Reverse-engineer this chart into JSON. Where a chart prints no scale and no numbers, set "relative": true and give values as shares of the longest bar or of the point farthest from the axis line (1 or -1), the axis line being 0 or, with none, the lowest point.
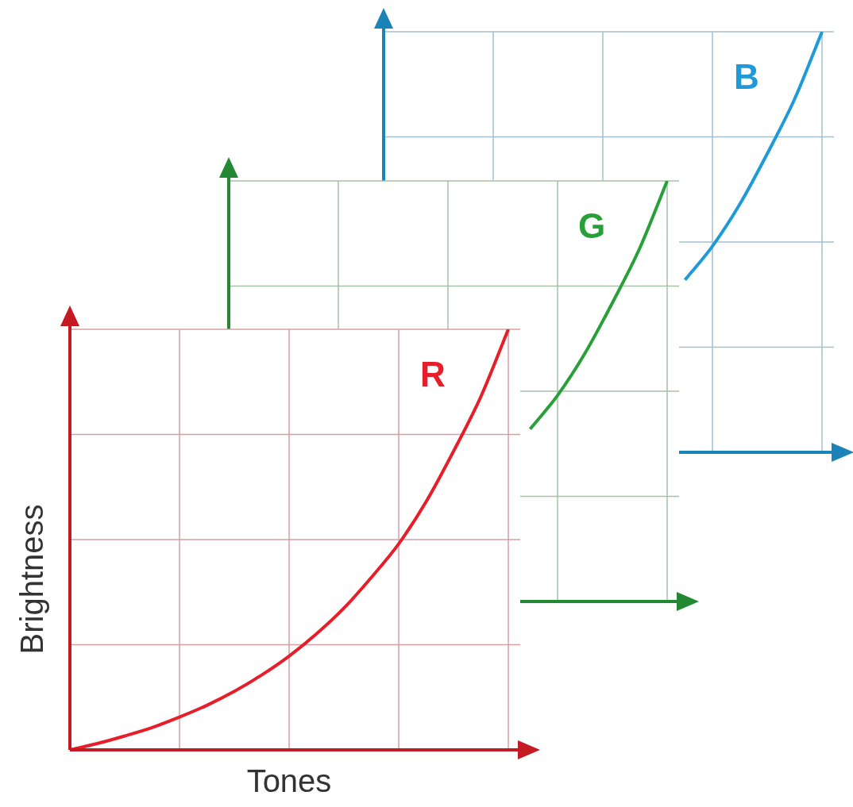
{
  "chart_data": [
    {
      "type": "line",
      "relative": true,
      "grid": true,
      "marker": "none",
      "categories": [
        null,
        null,
        null,
        null,
        null,
        null,
        null,
        null,
        null,
        null,
        null,
        null,
        null,
        null,
        null,
        null,
        null
      ],
      "series": [
        {
          "name": "B",
          "color": "#1f9ad8",
          "values": [
            null,
            null,
            null,
            null,
            null,
            null,
            null,
            null,
            null,
            null,
            null,
            0.41,
            0.49,
            0.59,
            0.71,
            0.84,
            1
          ]
        }
      ]
    },
    {
      "type": "line",
      "relative": true,
      "grid": true,
      "marker": "none",
      "categories": [
        null,
        null,
        null,
        null,
        null,
        null,
        null,
        null,
        null,
        null,
        null,
        null,
        null,
        null,
        null,
        null,
        null
      ],
      "series": [
        {
          "name": "G",
          "color": "#28a03a",
          "values": [
            null,
            null,
            null,
            null,
            null,
            null,
            null,
            null,
            null,
            null,
            null,
            0.41,
            0.49,
            0.59,
            0.71,
            0.84,
            1
          ]
        }
      ]
    },
    {
      "type": "line",
      "relative": true,
      "grid": true,
      "marker": "none",
      "xlabel": "Tones",
      "ylabel": "Brightness",
      "categories": [
        null,
        null,
        null,
        null,
        null,
        null,
        null,
        null,
        null,
        null,
        null,
        null,
        null,
        null,
        null,
        null,
        null
      ],
      "series": [
        {
          "name": "R",
          "color": "#e61e2a",
          "values": [
            0,
            0.015,
            0.033,
            0.053,
            0.078,
            0.106,
            0.139,
            0.178,
            0.223,
            0.276,
            0.337,
            0.41,
            0.49,
            0.59,
            0.71,
            0.84,
            1
          ]
        }
      ]
    }
  ]
}
